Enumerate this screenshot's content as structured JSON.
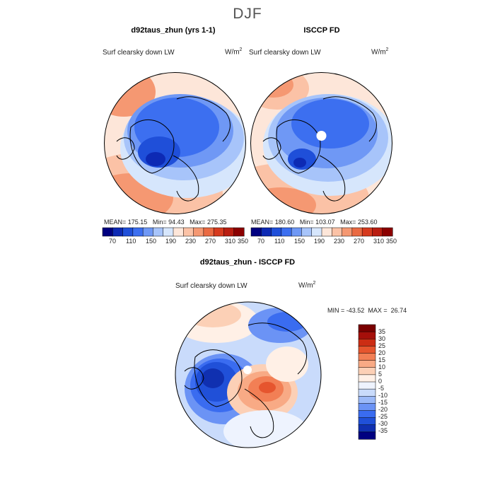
{
  "figure": {
    "title": "DJF",
    "colors": {
      "land_outline": "#000000",
      "abs_scale": [
        "#000080",
        "#0d2ab4",
        "#1f4fd9",
        "#3c6ff0",
        "#6f98f5",
        "#a7c4fa",
        "#d6e6fc",
        "#fde6d9",
        "#fbc2a6",
        "#f59872",
        "#ea6a42",
        "#d63a1e",
        "#b91d10",
        "#8b0000"
      ],
      "diff_scale": [
        "#000080",
        "#1030b0",
        "#2050d8",
        "#3a6cf0",
        "#6b93f5",
        "#9cbaf8",
        "#c9dbfb",
        "#eef3fe",
        "#fff0e6",
        "#fcd0b6",
        "#f8aa85",
        "#f27f55",
        "#e6552e",
        "#cc2d14",
        "#a50f0a",
        "#7a0000"
      ]
    }
  },
  "chart_data": [
    {
      "type": "heatmap",
      "title": "d92taus_zhun (yrs 1-1)",
      "variable_label": "Surf clearsky down LW",
      "units": "W/m",
      "units_exp": "2",
      "stats": {
        "mean_label": "MEAN=",
        "mean": "175.15",
        "min_label": "Min=",
        "min": "94.43",
        "max_label": "Max=",
        "max": "275.35"
      },
      "colorbar_ticks": [
        "70",
        "110",
        "150",
        "190",
        "230",
        "270",
        "310",
        "350"
      ]
    },
    {
      "type": "heatmap",
      "title": "ISCCP FD",
      "variable_label": "Surf clearsky down LW",
      "units": "W/m",
      "units_exp": "2",
      "stats": {
        "mean_label": "MEAN=",
        "mean": "180.60",
        "min_label": "Min=",
        "min": "103.07",
        "max_label": "Max=",
        "max": "253.60"
      },
      "colorbar_ticks": [
        "70",
        "110",
        "150",
        "190",
        "230",
        "270",
        "310",
        "350"
      ]
    },
    {
      "type": "heatmap",
      "title": "d92taus_zhun - ISCCP FD",
      "variable_label": "Surf clearsky down LW",
      "units": "W/m",
      "units_exp": "2",
      "stats": {
        "min_label": "MIN =",
        "min": "-43.52",
        "max_label": "MAX =",
        "max": "26.74"
      },
      "colorbar_ticks": [
        "35",
        "30",
        "25",
        "20",
        "15",
        "10",
        "5",
        "0",
        "-5",
        "-10",
        "-15",
        "-20",
        "-25",
        "-30",
        "-35"
      ]
    }
  ]
}
